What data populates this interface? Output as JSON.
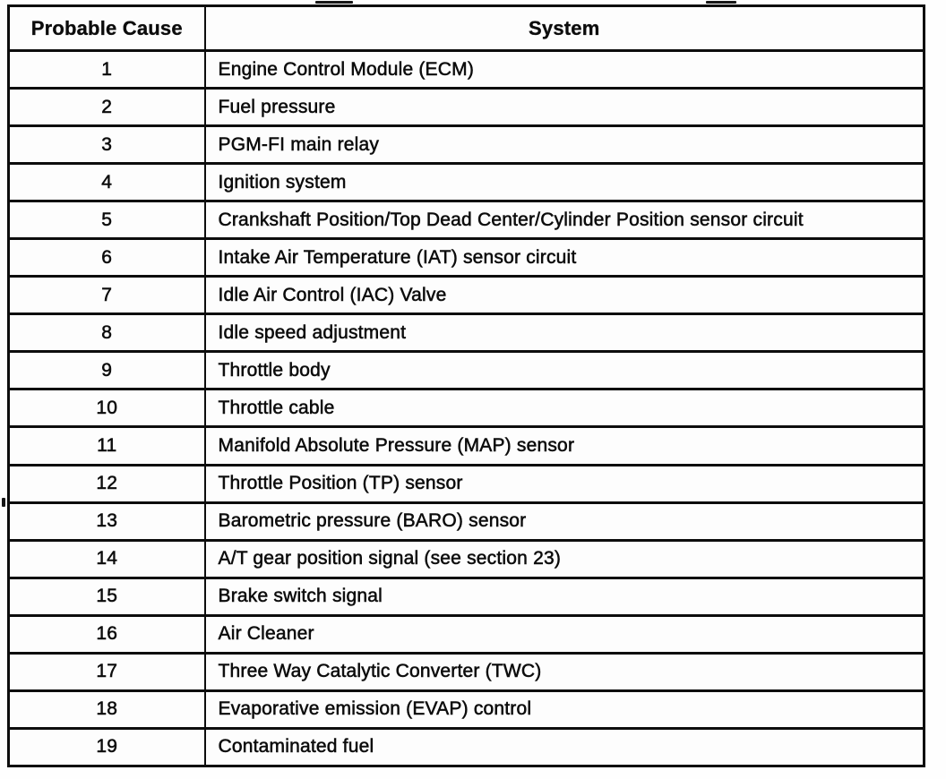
{
  "table": {
    "headers": [
      "Probable Cause",
      "System"
    ],
    "rows": [
      {
        "cause": "1",
        "system": "Engine Control Module (ECM)"
      },
      {
        "cause": "2",
        "system": "Fuel pressure"
      },
      {
        "cause": "3",
        "system": "PGM-FI main relay"
      },
      {
        "cause": "4",
        "system": "Ignition system"
      },
      {
        "cause": "5",
        "system": "Crankshaft Position/Top Dead Center/Cylinder Position sensor circuit"
      },
      {
        "cause": "6",
        "system": "Intake Air Temperature (IAT) sensor circuit"
      },
      {
        "cause": "7",
        "system": "Idle Air Control (IAC) Valve"
      },
      {
        "cause": "8",
        "system": "Idle speed adjustment"
      },
      {
        "cause": "9",
        "system": "Throttle body"
      },
      {
        "cause": "10",
        "system": "Throttle cable"
      },
      {
        "cause": "11",
        "system": "Manifold Absolute Pressure (MAP) sensor"
      },
      {
        "cause": "12",
        "system": "Throttle Position (TP) sensor"
      },
      {
        "cause": "13",
        "system": "Barometric pressure (BARO) sensor"
      },
      {
        "cause": "14",
        "system": "A/T gear position signal (see section 23)"
      },
      {
        "cause": "15",
        "system": "Brake switch signal"
      },
      {
        "cause": "16",
        "system": "Air Cleaner"
      },
      {
        "cause": "17",
        "system": "Three Way Catalytic Converter (TWC)"
      },
      {
        "cause": "18",
        "system": "Evaporative emission (EVAP) control"
      },
      {
        "cause": "19",
        "system": "Contaminated fuel"
      }
    ]
  }
}
